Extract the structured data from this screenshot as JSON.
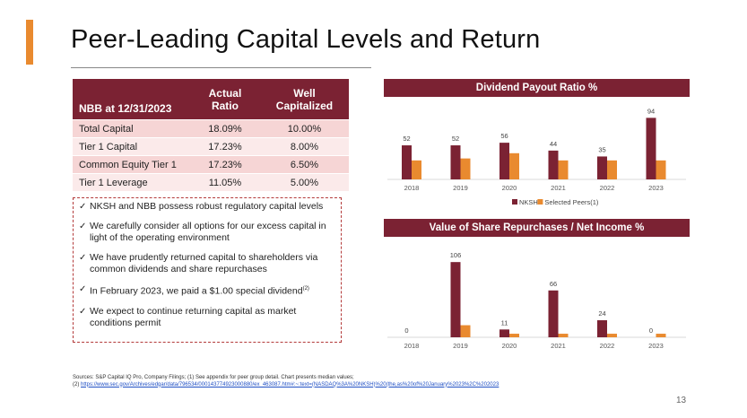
{
  "slide": {
    "title": "Peer-Leading Capital Levels and Return",
    "page_number": "13",
    "accent_color": "#e98a2f",
    "brand_color": "#7b2233"
  },
  "table": {
    "headers": [
      "NBB at 12/31/2023",
      "Actual Ratio",
      "Well Capitalized"
    ],
    "rows": [
      {
        "label": "Total Capital",
        "actual": "18.09%",
        "well": "10.00%"
      },
      {
        "label": "Tier 1 Capital",
        "actual": "17.23%",
        "well": "8.00%"
      },
      {
        "label": "Common Equity Tier 1",
        "actual": "17.23%",
        "well": "6.50%"
      },
      {
        "label": "Tier 1 Leverage",
        "actual": "11.05%",
        "well": "5.00%"
      }
    ]
  },
  "bullets": {
    "items": [
      "NKSH and NBB possess robust regulatory capital levels",
      "We carefully consider all options for our excess capital in light of the operating environment",
      "We have prudently returned capital to shareholders via common dividends and share repurchases",
      "In February 2023, we paid a $1.00 special dividend",
      "We expect to continue returning capital as market conditions permit"
    ],
    "footnote_marker": "(2)"
  },
  "chart_data": [
    {
      "type": "bar",
      "title": "Dividend Payout Ratio %",
      "categories": [
        "2018",
        "2019",
        "2020",
        "2021",
        "2022",
        "2023"
      ],
      "series": [
        {
          "name": "NKSH",
          "values": [
            52,
            52,
            56,
            44,
            35,
            94
          ],
          "color": "#7b2233"
        },
        {
          "name": "Selected Peers(1)",
          "values": [
            29,
            32,
            40,
            29,
            29,
            29
          ],
          "color": "#e98a2f"
        }
      ],
      "data_labels": [
        "52",
        "52",
        "56",
        "44",
        "35",
        "94"
      ],
      "legend_position": "bottom",
      "ylim": [
        0,
        100
      ]
    },
    {
      "type": "bar",
      "title": "Value of Share Repurchases / Net Income %",
      "categories": [
        "2018",
        "2019",
        "2020",
        "2021",
        "2022",
        "2023"
      ],
      "series": [
        {
          "name": "NKSH",
          "values": [
            0,
            106,
            11,
            66,
            24,
            0
          ],
          "color": "#7b2233"
        },
        {
          "name": "Selected Peers(1)",
          "values": [
            0,
            17,
            5,
            5,
            5,
            5
          ],
          "color": "#e98a2f"
        }
      ],
      "data_labels": [
        "0",
        "106",
        "11",
        "66",
        "24",
        "0"
      ],
      "ylim": [
        0,
        110
      ]
    }
  ],
  "sources": {
    "line1": "Sources: S&P Capital IQ Pro, Company Filings; (1) See appendix for peer group detail. Chart presents median values;",
    "line2_prefix": "(2)",
    "link": "https://www.sec.gov/Archives/edgar/data/796534/000143774923000880/ex_463087.htm#:~:text=(NASDAQ%3A%20NKSH)%20(the,as%20of%20January%2023%2C%202023"
  }
}
